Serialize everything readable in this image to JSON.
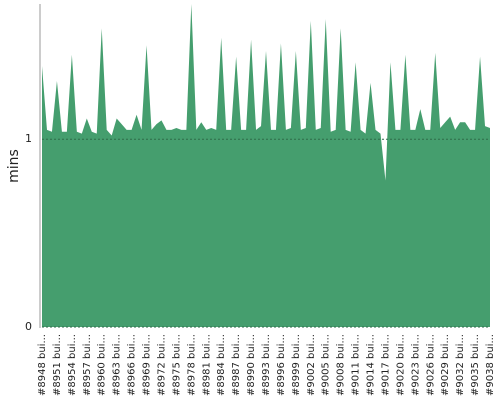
{
  "chart_data": {
    "type": "area",
    "y_label": "mins",
    "color": "#459e6e",
    "categories": [
      "#8948 bui...",
      null,
      null,
      "#8951 bui...",
      null,
      null,
      "#8954 bui...",
      null,
      null,
      "#8957 bui...",
      null,
      null,
      "#8960 bui...",
      null,
      null,
      "#8963 bui...",
      null,
      null,
      "#8966 bui...",
      null,
      null,
      "#8969 bui...",
      null,
      null,
      "#8972 bui...",
      null,
      null,
      "#8975 bui...",
      null,
      null,
      "#8978 bui...",
      null,
      null,
      "#8981 bui...",
      null,
      null,
      "#8984 bui...",
      null,
      null,
      "#8987 bui...",
      null,
      null,
      "#8990 bui...",
      null,
      null,
      "#8993 bui...",
      null,
      null,
      "#8996 bui...",
      null,
      null,
      "#8999 bui...",
      null,
      null,
      "#9002 bui...",
      null,
      null,
      "#9005 bui...",
      null,
      null,
      "#9008 bui...",
      null,
      null,
      "#9011 bui...",
      null,
      null,
      "#9014 bui...",
      null,
      null,
      "#9017 bui...",
      null,
      null,
      "#9020 bui...",
      null,
      null,
      "#9023 bui...",
      null,
      null,
      "#9026 bui...",
      null,
      null,
      "#9029 bui...",
      null,
      null,
      "#9032 bui...",
      null,
      null,
      "#9035 bui...",
      null,
      null,
      "#9038 bui..."
    ],
    "values": [
      1.39,
      1.05,
      1.04,
      1.31,
      1.04,
      1.04,
      1.45,
      1.04,
      1.03,
      1.11,
      1.04,
      1.03,
      1.59,
      1.05,
      1.02,
      1.11,
      1.08,
      1.05,
      1.05,
      1.13,
      1.05,
      1.5,
      1.05,
      1.08,
      1.1,
      1.05,
      1.05,
      1.06,
      1.05,
      1.05,
      1.72,
      1.05,
      1.09,
      1.05,
      1.06,
      1.05,
      1.54,
      1.05,
      1.05,
      1.44,
      1.05,
      1.05,
      1.53,
      1.05,
      1.07,
      1.47,
      1.05,
      1.05,
      1.51,
      1.05,
      1.06,
      1.47,
      1.05,
      1.06,
      1.63,
      1.05,
      1.06,
      1.64,
      1.04,
      1.05,
      1.59,
      1.05,
      1.04,
      1.41,
      1.05,
      1.03,
      1.3,
      1.05,
      1.03,
      0.78,
      1.41,
      1.05,
      1.05,
      1.45,
      1.05,
      1.05,
      1.16,
      1.05,
      1.05,
      1.46,
      1.06,
      1.09,
      1.12,
      1.05,
      1.09,
      1.09,
      1.05,
      1.05,
      1.44,
      1.07,
      1.06
    ],
    "ylim": [
      0,
      1.72
    ],
    "yticks": [
      0,
      1
    ],
    "grid": true
  }
}
